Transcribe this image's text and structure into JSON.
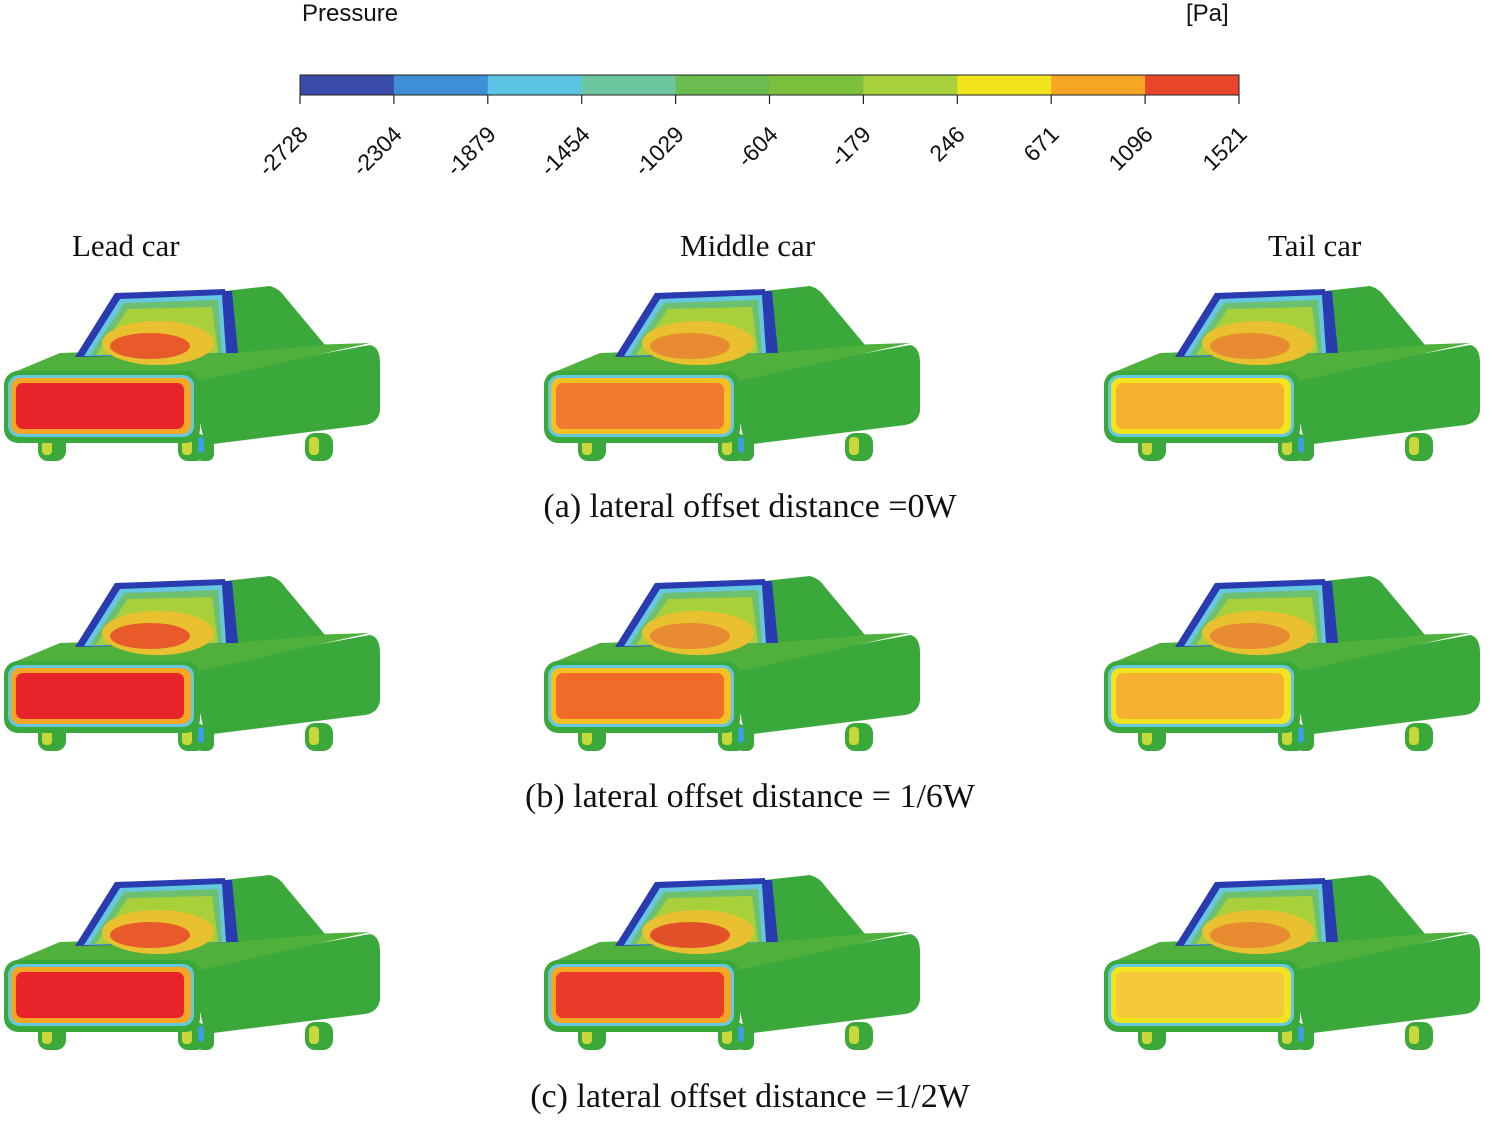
{
  "colorbar": {
    "title": "Pressure",
    "unit": "[Pa]",
    "ticks": [
      "-2728",
      "-2304",
      "-1879",
      "-1454",
      "-1029",
      "-604",
      "-179",
      "246",
      "671",
      "1096",
      "1521"
    ],
    "colors": [
      "#3a4aa8",
      "#3f8fd6",
      "#5cc4e2",
      "#6cc6a0",
      "#6abc50",
      "#7cbf3c",
      "#a8d03a",
      "#f2e41c",
      "#f5a623",
      "#e8452a"
    ]
  },
  "columns": {
    "lead": "Lead car",
    "middle": "Middle car",
    "tail": "Tail car"
  },
  "rows": [
    {
      "caption": "(a) lateral offset distance =0W",
      "cars": [
        {
          "front": "#e8242a",
          "front_edge": "#f5a623",
          "windshield": "#e85a2a"
        },
        {
          "front": "#f07a30",
          "front_edge": "#f5c020",
          "windshield": "#e88a30"
        },
        {
          "front": "#f5b030",
          "front_edge": "#f2e41c",
          "windshield": "#e88a30"
        }
      ]
    },
    {
      "caption": "(b) lateral offset distance = 1/6W",
      "cars": [
        {
          "front": "#e8242a",
          "front_edge": "#f5a623",
          "windshield": "#e85a2a"
        },
        {
          "front": "#f06a2a",
          "front_edge": "#f5c020",
          "windshield": "#e88a30"
        },
        {
          "front": "#f5b030",
          "front_edge": "#f2e41c",
          "windshield": "#e88a30"
        }
      ]
    },
    {
      "caption": "(c) lateral offset distance =1/2W",
      "cars": [
        {
          "front": "#e8242a",
          "front_edge": "#f5a623",
          "windshield": "#e85a2a"
        },
        {
          "front": "#ea3a2a",
          "front_edge": "#f5a623",
          "windshield": "#e2502a"
        },
        {
          "front": "#f2c83a",
          "front_edge": "#f2e41c",
          "windshield": "#e88a30"
        }
      ]
    }
  ],
  "body_color": "#3aa83a",
  "roof_edge_color": "#2a3ab0"
}
